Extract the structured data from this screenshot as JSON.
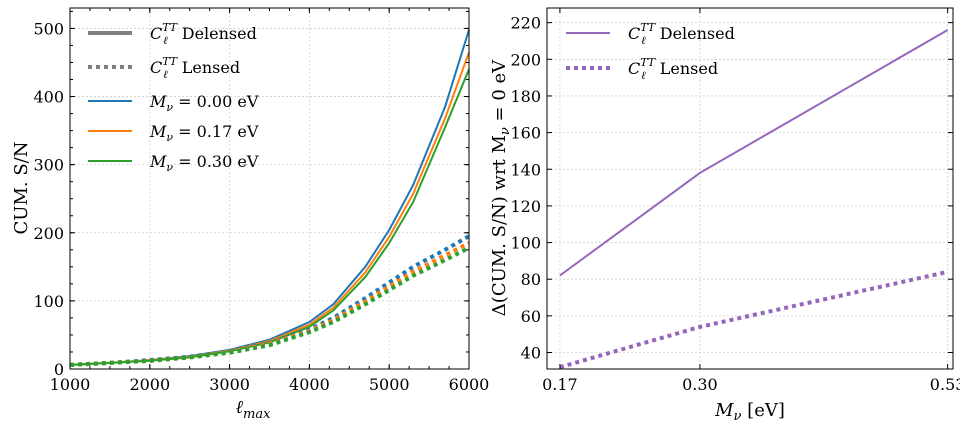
{
  "chart_data": [
    {
      "type": "line",
      "ylabel": "CUM. S/N",
      "xlabel": "ℓmax",
      "xlabel_main": "ℓ",
      "xlabel_sub": "max",
      "xlim": [
        1000,
        6000
      ],
      "ylim": [
        0,
        530
      ],
      "xticks": [
        1000,
        2000,
        3000,
        4000,
        5000,
        6000
      ],
      "yticks": [
        0,
        100,
        200,
        300,
        400,
        500
      ],
      "grid": true,
      "legend_position": "top-left",
      "legend": [
        {
          "main": "C",
          "sup": "TT",
          "sub": "ℓ",
          "text": "Delensed",
          "style": "solid",
          "color": "#808080"
        },
        {
          "main": "C",
          "sup": "TT",
          "sub": "ℓ",
          "text": "Lensed",
          "style": "dotted",
          "color": "#808080"
        },
        {
          "label_main": "M",
          "label_sub": "ν",
          "label_rest": " = 0.00 eV",
          "style": "solid",
          "color": "#1f77b4"
        },
        {
          "label_main": "M",
          "label_sub": "ν",
          "label_rest": " = 0.17 eV",
          "style": "solid",
          "color": "#ff7f0e"
        },
        {
          "label_main": "M",
          "label_sub": "ν",
          "label_rest": " = 0.30 eV",
          "style": "solid",
          "color": "#2ca02c"
        }
      ],
      "x": [
        1000,
        1500,
        2000,
        2500,
        3000,
        3500,
        4000,
        4300,
        4700,
        5000,
        5300,
        5700,
        6000
      ],
      "series": [
        {
          "name": "Delensed Mν = 0.00 eV",
          "style": "solid",
          "color": "#1f77b4",
          "values": [
            6,
            9,
            13,
            19,
            28,
            43,
            69,
            95,
            150,
            204,
            270,
            385,
            498
          ]
        },
        {
          "name": "Delensed Mν = 0.17 eV",
          "style": "solid",
          "color": "#ff7f0e",
          "values": [
            6,
            9,
            13,
            18,
            27,
            41,
            65,
            90,
            142,
            194,
            257,
            368,
            465
          ]
        },
        {
          "name": "Delensed Mν = 0.30 eV",
          "style": "solid",
          "color": "#2ca02c",
          "values": [
            6,
            9,
            12,
            17,
            26,
            39,
            62,
            86,
            135,
            185,
            245,
            355,
            440
          ]
        },
        {
          "name": "Lensed Mν = 0.00 eV",
          "style": "dotted",
          "color": "#1f77b4",
          "values": [
            6,
            9,
            13,
            18,
            26,
            38,
            58,
            75,
            104,
            127,
            150,
            175,
            195
          ]
        },
        {
          "name": "Lensed Mν = 0.17 eV",
          "style": "dotted",
          "color": "#ff7f0e",
          "values": [
            6,
            9,
            12,
            17,
            25,
            37,
            56,
            72,
            99,
            121,
            143,
            167,
            185
          ]
        },
        {
          "name": "Lensed Mν = 0.30 eV",
          "style": "dotted",
          "color": "#2ca02c",
          "values": [
            6,
            9,
            12,
            17,
            24,
            35,
            54,
            69,
            95,
            116,
            137,
            160,
            178
          ]
        }
      ]
    },
    {
      "type": "line",
      "ylabel": "Δ(CUM. S/N) wrt Mν = 0 eV",
      "ylabel_pre": "Δ(CUM. S/N) wrt M",
      "ylabel_sub": "ν",
      "ylabel_post": " = 0 eV",
      "xlabel": "Mν [eV]",
      "xlabel_main": "M",
      "xlabel_sub": "ν",
      "xlabel_rest": " [eV]",
      "xlim": [
        0.158,
        0.535
      ],
      "ylim": [
        31,
        228
      ],
      "xticks": [
        "0.17",
        "0.30",
        "0.53"
      ],
      "yticks": [
        40,
        60,
        80,
        100,
        120,
        140,
        160,
        180,
        200,
        220
      ],
      "grid": true,
      "legend_position": "top-left",
      "legend": [
        {
          "main": "C",
          "sup": "TT",
          "sub": "ℓ",
          "text": "Delensed",
          "style": "solid",
          "color": "#9467bd"
        },
        {
          "main": "C",
          "sup": "TT",
          "sub": "ℓ",
          "text": "Lensed",
          "style": "dotted",
          "color": "#9467bd"
        }
      ],
      "x": [
        0.17,
        0.3,
        0.53
      ],
      "series": [
        {
          "name": "Delensed",
          "style": "solid",
          "color": "#9467bd",
          "values": [
            82,
            138,
            216
          ]
        },
        {
          "name": "Lensed",
          "style": "dotted",
          "color": "#9467bd",
          "values": [
            32,
            54,
            84
          ]
        }
      ]
    }
  ]
}
